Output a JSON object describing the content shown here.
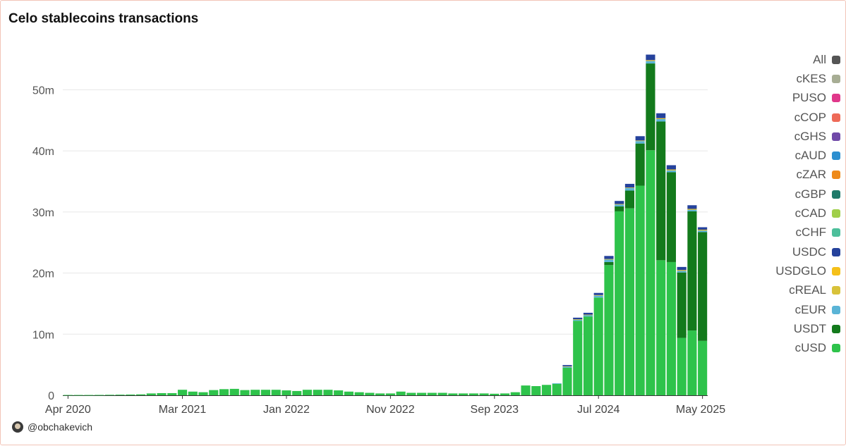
{
  "chart_data": {
    "type": "bar",
    "stacked": true,
    "title": "Celo stablecoins transactions",
    "ylim": [
      0,
      56.5
    ],
    "y_ticks": [
      0,
      10,
      20,
      30,
      40,
      50
    ],
    "y_tick_labels": [
      "0",
      "10m",
      "20m",
      "30m",
      "40m",
      "50m"
    ],
    "x_tick_labels": [
      "Apr 2020",
      "Mar 2021",
      "Jan 2022",
      "Nov 2022",
      "Sep 2023",
      "Jul 2024",
      "May 2025"
    ],
    "x_tick_indices": [
      0,
      11,
      21,
      31,
      41,
      51,
      61
    ],
    "categories_start": "Apr 2020",
    "categories_end": "May 2025",
    "legend_position": "right",
    "grid": true,
    "series": [
      {
        "name": "cUSD",
        "color": "#2ec34b",
        "values": [
          0.05,
          0.05,
          0.05,
          0.06,
          0.08,
          0.1,
          0.12,
          0.15,
          0.3,
          0.35,
          0.35,
          0.9,
          0.6,
          0.5,
          0.85,
          1.0,
          1.05,
          0.85,
          0.9,
          0.9,
          0.9,
          0.8,
          0.7,
          0.9,
          0.9,
          0.9,
          0.8,
          0.6,
          0.5,
          0.4,
          0.3,
          0.3,
          0.6,
          0.4,
          0.4,
          0.4,
          0.4,
          0.3,
          0.3,
          0.3,
          0.3,
          0.25,
          0.3,
          0.5,
          1.6,
          1.5,
          1.7,
          1.9,
          4.5,
          12.2,
          12.9,
          16.0,
          21.3,
          30.1,
          30.6,
          34.3,
          40.1,
          22.1,
          21.8,
          9.4,
          10.6,
          8.9
        ]
      },
      {
        "name": "USDT",
        "color": "#137a1c",
        "values": [
          0,
          0,
          0,
          0,
          0,
          0,
          0,
          0,
          0,
          0,
          0,
          0,
          0,
          0,
          0,
          0,
          0,
          0,
          0,
          0,
          0,
          0,
          0,
          0,
          0,
          0,
          0,
          0,
          0,
          0,
          0,
          0,
          0,
          0,
          0,
          0,
          0,
          0,
          0,
          0,
          0,
          0,
          0,
          0,
          0,
          0,
          0,
          0,
          0,
          0,
          0,
          0,
          0.5,
          0.8,
          2.9,
          6.9,
          14.2,
          22.7,
          14.7,
          10.7,
          19.5,
          17.8
        ]
      },
      {
        "name": "cEUR",
        "color": "#5ab4d6",
        "values": [
          0,
          0,
          0,
          0,
          0,
          0,
          0,
          0,
          0,
          0,
          0,
          0,
          0,
          0,
          0,
          0,
          0,
          0,
          0,
          0,
          0,
          0,
          0,
          0,
          0,
          0,
          0,
          0,
          0,
          0,
          0,
          0,
          0,
          0,
          0,
          0,
          0,
          0,
          0,
          0,
          0,
          0,
          0,
          0,
          0,
          0,
          0,
          0.05,
          0.2,
          0.2,
          0.25,
          0.3,
          0.4,
          0.3,
          0.4,
          0.4,
          0.4,
          0.4,
          0.3,
          0.3,
          0.3,
          0.3
        ]
      },
      {
        "name": "cREAL",
        "color": "#d8c23a",
        "values": [
          0,
          0,
          0,
          0,
          0,
          0,
          0,
          0,
          0,
          0,
          0,
          0,
          0,
          0,
          0,
          0,
          0,
          0,
          0,
          0,
          0,
          0,
          0,
          0,
          0,
          0,
          0,
          0,
          0,
          0,
          0,
          0,
          0,
          0,
          0,
          0,
          0,
          0,
          0,
          0,
          0,
          0,
          0,
          0,
          0,
          0,
          0,
          0,
          0.05,
          0.05,
          0.05,
          0.1,
          0.1,
          0.1,
          0.1,
          0.1,
          0.1,
          0.1,
          0.1,
          0.05,
          0.05,
          0.05
        ]
      },
      {
        "name": "USDGLO",
        "color": "#f5c019",
        "values": [
          0,
          0,
          0,
          0,
          0,
          0,
          0,
          0,
          0,
          0,
          0,
          0,
          0,
          0,
          0,
          0,
          0,
          0,
          0,
          0,
          0,
          0,
          0,
          0,
          0,
          0,
          0,
          0,
          0,
          0,
          0,
          0,
          0,
          0,
          0,
          0,
          0,
          0,
          0,
          0,
          0,
          0,
          0,
          0,
          0,
          0,
          0,
          0,
          0,
          0,
          0,
          0,
          0,
          0,
          0,
          0,
          0.05,
          0.05,
          0.05,
          0.05,
          0.05,
          0.05
        ]
      },
      {
        "name": "USDC",
        "color": "#25429c",
        "values": [
          0,
          0,
          0,
          0,
          0,
          0,
          0,
          0,
          0,
          0,
          0,
          0,
          0,
          0,
          0,
          0,
          0,
          0,
          0,
          0,
          0,
          0,
          0,
          0,
          0,
          0,
          0,
          0,
          0,
          0,
          0,
          0,
          0,
          0,
          0,
          0,
          0,
          0,
          0,
          0,
          0,
          0,
          0,
          0,
          0,
          0,
          0,
          0,
          0.2,
          0.25,
          0.3,
          0.35,
          0.5,
          0.5,
          0.6,
          0.7,
          0.9,
          0.8,
          0.7,
          0.5,
          0.6,
          0.4
        ]
      },
      {
        "name": "cCHF",
        "color": "#4dbf9b",
        "values": [
          0,
          0,
          0,
          0,
          0,
          0,
          0,
          0,
          0,
          0,
          0,
          0,
          0,
          0,
          0,
          0,
          0,
          0,
          0,
          0,
          0,
          0,
          0,
          0,
          0,
          0,
          0,
          0,
          0,
          0,
          0,
          0,
          0,
          0,
          0,
          0,
          0,
          0,
          0,
          0,
          0,
          0,
          0,
          0,
          0,
          0,
          0,
          0,
          0,
          0,
          0,
          0,
          0,
          0,
          0,
          0,
          0,
          0,
          0,
          0,
          0,
          0
        ]
      },
      {
        "name": "cCAD",
        "color": "#a0cf4a",
        "values": [
          0,
          0,
          0,
          0,
          0,
          0,
          0,
          0,
          0,
          0,
          0,
          0,
          0,
          0,
          0,
          0,
          0,
          0,
          0,
          0,
          0,
          0,
          0,
          0,
          0,
          0,
          0,
          0,
          0,
          0,
          0,
          0,
          0,
          0,
          0,
          0,
          0,
          0,
          0,
          0,
          0,
          0,
          0,
          0,
          0,
          0,
          0,
          0,
          0,
          0,
          0,
          0,
          0,
          0,
          0,
          0,
          0,
          0,
          0,
          0,
          0,
          0
        ]
      },
      {
        "name": "cGBP",
        "color": "#1f7a6a",
        "values": [
          0,
          0,
          0,
          0,
          0,
          0,
          0,
          0,
          0,
          0,
          0,
          0,
          0,
          0,
          0,
          0,
          0,
          0,
          0,
          0,
          0,
          0,
          0,
          0,
          0,
          0,
          0,
          0,
          0,
          0,
          0,
          0,
          0,
          0,
          0,
          0,
          0,
          0,
          0,
          0,
          0,
          0,
          0,
          0,
          0,
          0,
          0,
          0,
          0,
          0,
          0,
          0,
          0,
          0,
          0,
          0,
          0,
          0,
          0,
          0,
          0,
          0
        ]
      },
      {
        "name": "cZAR",
        "color": "#ee8a1a",
        "values": [
          0,
          0,
          0,
          0,
          0,
          0,
          0,
          0,
          0,
          0,
          0,
          0,
          0,
          0,
          0,
          0,
          0,
          0,
          0,
          0,
          0,
          0,
          0,
          0,
          0,
          0,
          0,
          0,
          0,
          0,
          0,
          0,
          0,
          0,
          0,
          0,
          0,
          0,
          0,
          0,
          0,
          0,
          0,
          0,
          0,
          0,
          0,
          0,
          0,
          0,
          0,
          0,
          0,
          0,
          0,
          0,
          0,
          0,
          0,
          0,
          0,
          0
        ]
      },
      {
        "name": "cAUD",
        "color": "#2d8fd0",
        "values": [
          0,
          0,
          0,
          0,
          0,
          0,
          0,
          0,
          0,
          0,
          0,
          0,
          0,
          0,
          0,
          0,
          0,
          0,
          0,
          0,
          0,
          0,
          0,
          0,
          0,
          0,
          0,
          0,
          0,
          0,
          0,
          0,
          0,
          0,
          0,
          0,
          0,
          0,
          0,
          0,
          0,
          0,
          0,
          0,
          0,
          0,
          0,
          0,
          0,
          0,
          0,
          0,
          0,
          0,
          0,
          0,
          0,
          0,
          0,
          0,
          0,
          0
        ]
      },
      {
        "name": "cGHS",
        "color": "#7049a8",
        "values": [
          0,
          0,
          0,
          0,
          0,
          0,
          0,
          0,
          0,
          0,
          0,
          0,
          0,
          0,
          0,
          0,
          0,
          0,
          0,
          0,
          0,
          0,
          0,
          0,
          0,
          0,
          0,
          0,
          0,
          0,
          0,
          0,
          0,
          0,
          0,
          0,
          0,
          0,
          0,
          0,
          0,
          0,
          0,
          0,
          0,
          0,
          0,
          0,
          0,
          0,
          0,
          0,
          0,
          0,
          0,
          0,
          0,
          0,
          0,
          0,
          0,
          0
        ]
      },
      {
        "name": "cCOP",
        "color": "#ee6a58",
        "values": [
          0,
          0,
          0,
          0,
          0,
          0,
          0,
          0,
          0,
          0,
          0,
          0,
          0,
          0,
          0,
          0,
          0,
          0,
          0,
          0,
          0,
          0,
          0,
          0,
          0,
          0,
          0,
          0,
          0,
          0,
          0,
          0,
          0,
          0,
          0,
          0,
          0,
          0,
          0,
          0,
          0,
          0,
          0,
          0,
          0,
          0,
          0,
          0,
          0,
          0,
          0,
          0,
          0,
          0,
          0,
          0,
          0,
          0,
          0,
          0,
          0,
          0
        ]
      },
      {
        "name": "PUSO",
        "color": "#e0388a",
        "values": [
          0,
          0,
          0,
          0,
          0,
          0,
          0,
          0,
          0,
          0,
          0,
          0,
          0,
          0,
          0,
          0,
          0,
          0,
          0,
          0,
          0,
          0,
          0,
          0,
          0,
          0,
          0,
          0,
          0,
          0,
          0,
          0,
          0,
          0,
          0,
          0,
          0,
          0,
          0,
          0,
          0,
          0,
          0,
          0,
          0,
          0,
          0,
          0,
          0,
          0,
          0,
          0,
          0,
          0,
          0,
          0,
          0,
          0,
          0,
          0,
          0,
          0
        ]
      },
      {
        "name": "cKES",
        "color": "#a7ad94",
        "values": [
          0,
          0,
          0,
          0,
          0,
          0,
          0,
          0,
          0,
          0,
          0,
          0,
          0,
          0,
          0,
          0,
          0,
          0,
          0,
          0,
          0,
          0,
          0,
          0,
          0,
          0,
          0,
          0,
          0,
          0,
          0,
          0,
          0,
          0,
          0,
          0,
          0,
          0,
          0,
          0,
          0,
          0,
          0,
          0,
          0,
          0,
          0,
          0,
          0,
          0,
          0,
          0,
          0,
          0,
          0,
          0,
          0,
          0,
          0,
          0,
          0,
          0
        ]
      }
    ],
    "legend": [
      {
        "label": "All",
        "color": "#555555"
      },
      {
        "label": "cKES",
        "color": "#a7ad94"
      },
      {
        "label": "PUSO",
        "color": "#e0388a"
      },
      {
        "label": "cCOP",
        "color": "#ee6a58"
      },
      {
        "label": "cGHS",
        "color": "#7049a8"
      },
      {
        "label": "cAUD",
        "color": "#2d8fd0"
      },
      {
        "label": "cZAR",
        "color": "#ee8a1a"
      },
      {
        "label": "cGBP",
        "color": "#1f7a6a"
      },
      {
        "label": "cCAD",
        "color": "#a0cf4a"
      },
      {
        "label": "cCHF",
        "color": "#4dbf9b"
      },
      {
        "label": "USDC",
        "color": "#25429c"
      },
      {
        "label": "USDGLO",
        "color": "#f5c019"
      },
      {
        "label": "cREAL",
        "color": "#d8c23a"
      },
      {
        "label": "cEUR",
        "color": "#5ab4d6"
      },
      {
        "label": "USDT",
        "color": "#137a1c"
      },
      {
        "label": "cUSD",
        "color": "#2ec34b"
      }
    ]
  },
  "footer": {
    "handle": "@obchakevich"
  }
}
